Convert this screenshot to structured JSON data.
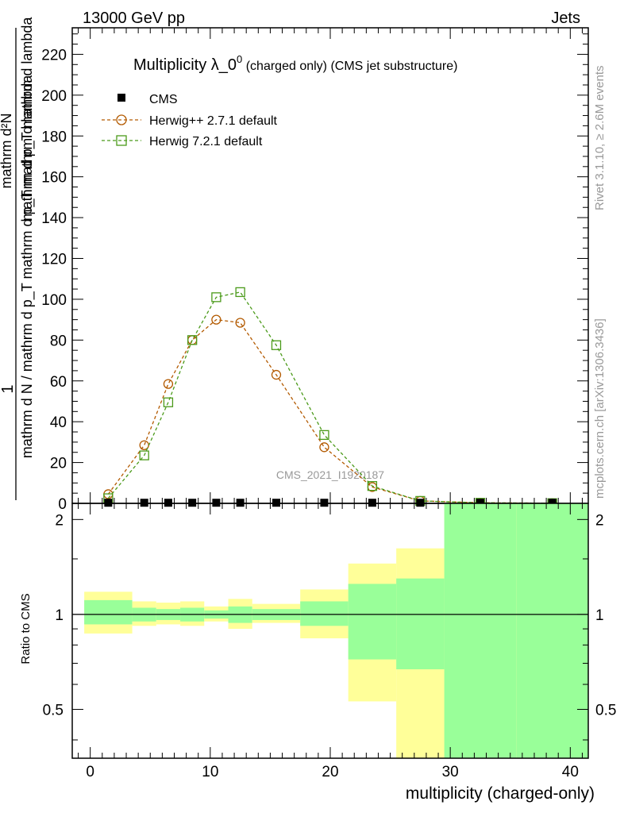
{
  "header": {
    "left": "13000 GeV pp",
    "right": "Jets"
  },
  "side_labels": {
    "rivet": "Rivet 3.1.10, ≥ 2.6M events",
    "mcplots": "mcplots.cern.ch [arXiv:1306.3436]"
  },
  "watermark": "CMS_2021_I1920187",
  "chart_data": [
    {
      "type": "line",
      "title": "Multiplicity λ_0⁰ (charged only) (CMS jet substructure)",
      "title_main": "Multiplicity λ_0",
      "title_sup": "0",
      "title_rest": " (charged only) (CMS jet substructure)",
      "ylabel": {
        "numerator": "1",
        "denominator": "mathrm d N / mathrm d p_T mathrm d p_T mathrm d lambda",
        "inner_numerator": "mathrm d²N",
        "inner_denominator": "mathrm d p_T mathrm d lambda"
      },
      "xlim": [
        -1.5,
        41.5
      ],
      "ylim": [
        0,
        233
      ],
      "y_ticks": [
        0,
        20,
        40,
        60,
        80,
        100,
        120,
        140,
        160,
        180,
        200,
        220
      ],
      "y_tick_labels": [
        "0",
        "20",
        "40",
        "60",
        "80",
        "100",
        "120",
        "140",
        "160",
        "180",
        "200",
        "220"
      ],
      "legend_position": "top-left",
      "series": [
        {
          "name": "CMS",
          "marker": "filled-square",
          "color": "#000000",
          "x": [
            1.5,
            4.5,
            6.5,
            8.5,
            10.5,
            12.5,
            15.5,
            19.5,
            23.5,
            27.5,
            32.5,
            38.5
          ],
          "y": [
            0.3,
            0.3,
            0.3,
            0.3,
            0.3,
            0.3,
            0.3,
            0.3,
            0.3,
            0.3,
            0.3,
            0.3
          ]
        },
        {
          "name": "Herwig++ 2.7.1 default",
          "marker": "open-circle",
          "color": "#b35a00",
          "x": [
            1.5,
            4.5,
            6.5,
            8.5,
            10.5,
            12.5,
            15.5,
            19.5,
            23.5,
            27.5,
            32.5,
            38.5
          ],
          "y": [
            4.5,
            28.5,
            58.5,
            80,
            90,
            88.5,
            63,
            27.5,
            8,
            1.2,
            0.3,
            0.1
          ]
        },
        {
          "name": "Herwig 7.2.1 default",
          "marker": "open-square",
          "color": "#4b9a1a",
          "x": [
            1.5,
            4.5,
            6.5,
            8.5,
            10.5,
            12.5,
            15.5,
            19.5,
            23.5,
            27.5,
            32.5,
            38.5
          ],
          "y": [
            2.5,
            23.5,
            49.5,
            80,
            101,
            103.5,
            77.5,
            33.5,
            8.5,
            1.2,
            0.3,
            0.1
          ]
        }
      ]
    },
    {
      "type": "area",
      "title": "",
      "xlabel": "multiplicity (charged-only)",
      "ylabel": "Ratio to CMS",
      "xlim": [
        -1.5,
        41.5
      ],
      "ylim": [
        0.35,
        2.25
      ],
      "x_ticks": [
        0,
        10,
        20,
        30,
        40
      ],
      "x_tick_labels": [
        "0",
        "10",
        "20",
        "30",
        "40"
      ],
      "y_ticks": [
        0.5,
        1,
        2
      ],
      "y_tick_labels": [
        "0.5",
        "1",
        "2"
      ],
      "reference_line": 1,
      "bins": [
        {
          "lo": -0.5,
          "hi": 3.5,
          "green": [
            0.93,
            1.11
          ],
          "yellow": [
            0.87,
            1.18
          ]
        },
        {
          "lo": 3.5,
          "hi": 5.5,
          "green": [
            0.95,
            1.05
          ],
          "yellow": [
            0.92,
            1.1
          ]
        },
        {
          "lo": 5.5,
          "hi": 7.5,
          "green": [
            0.96,
            1.04
          ],
          "yellow": [
            0.93,
            1.09
          ]
        },
        {
          "lo": 7.5,
          "hi": 9.5,
          "green": [
            0.95,
            1.05
          ],
          "yellow": [
            0.92,
            1.1
          ]
        },
        {
          "lo": 9.5,
          "hi": 11.5,
          "green": [
            0.97,
            1.03
          ],
          "yellow": [
            0.95,
            1.06
          ]
        },
        {
          "lo": 11.5,
          "hi": 13.5,
          "green": [
            0.94,
            1.06
          ],
          "yellow": [
            0.9,
            1.12
          ]
        },
        {
          "lo": 13.5,
          "hi": 17.5,
          "green": [
            0.96,
            1.04
          ],
          "yellow": [
            0.94,
            1.08
          ]
        },
        {
          "lo": 17.5,
          "hi": 21.5,
          "green": [
            0.92,
            1.1
          ],
          "yellow": [
            0.84,
            1.2
          ]
        },
        {
          "lo": 21.5,
          "hi": 25.5,
          "green": [
            0.72,
            1.25
          ],
          "yellow": [
            0.53,
            1.45
          ]
        },
        {
          "lo": 25.5,
          "hi": 29.5,
          "green": [
            0.67,
            1.3
          ],
          "yellow": [
            0.35,
            1.62
          ]
        },
        {
          "lo": 29.5,
          "hi": 35.5,
          "green": [
            0.35,
            2.25
          ],
          "yellow": [
            0.35,
            2.25
          ]
        },
        {
          "lo": 35.5,
          "hi": 41.5,
          "green": [
            0.35,
            2.25
          ],
          "yellow": [
            0.35,
            2.25
          ]
        }
      ]
    }
  ],
  "colors": {
    "band_yellow": "#ffff99",
    "band_green": "#99ff99",
    "axes": "#000000",
    "watermark": "#999999"
  }
}
